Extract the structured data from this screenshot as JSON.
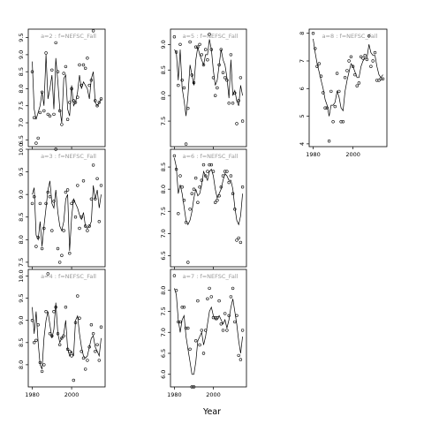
{
  "chart_data": {
    "type": "line",
    "layout": "3x3 grid of panels, column-major",
    "xlabel": "Year",
    "series_styles": {
      "observed": "open circles",
      "fitted": "black line"
    },
    "panels": [
      {
        "title": "a=2  :  f=NEFSC_Fall",
        "xlim": [
          1978,
          2017
        ],
        "ylim": [
          6.3,
          9.75
        ],
        "xticks": [
          1980,
          2000
        ],
        "yticks": [
          6.5,
          7.0,
          7.5,
          8.0,
          8.5,
          9.0,
          9.5
        ],
        "x": [
          1980,
          1981,
          1982,
          1983,
          1984,
          1985,
          1986,
          1987,
          1988,
          1989,
          1990,
          1991,
          1992,
          1993,
          1994,
          1995,
          1996,
          1997,
          1998,
          1999,
          2000,
          2001,
          2002,
          2003,
          2004,
          2005,
          2006,
          2007,
          2008,
          2009,
          2010,
          2011,
          2012,
          2013,
          2014,
          2015
        ],
        "observed": [
          8.5,
          7.15,
          6.4,
          6.55,
          7.3,
          7.9,
          7.35,
          9.05,
          7.25,
          7.2,
          8.55,
          7.25,
          9.35,
          8.5,
          7.35,
          6.95,
          8.45,
          8.65,
          7.1,
          7.6,
          8.0,
          7.65,
          7.6,
          7.75,
          8.7,
          8.1,
          8.7,
          8.6,
          8.9,
          8.1,
          8.25,
          9.7,
          7.65,
          7.5,
          7.6,
          7.7
        ],
        "fitted": [
          8.8,
          7.4,
          7.1,
          7.3,
          7.5,
          7.9,
          7.5,
          9.0,
          7.7,
          8.0,
          8.4,
          7.4,
          8.9,
          8.2,
          7.4,
          7.0,
          8.3,
          8.4,
          7.4,
          7.2,
          8.1,
          7.5,
          7.6,
          7.9,
          8.4,
          8.0,
          8.2,
          8.1,
          8.0,
          7.7,
          8.3,
          8.5,
          7.6,
          7.5,
          7.6,
          7.7
        ]
      },
      {
        "title": "a=3  :  f=NEFSC_Fall",
        "xlim": [
          1978,
          2017
        ],
        "ylim": [
          7.4,
          10.0
        ],
        "xticks": [
          1980,
          2000
        ],
        "yticks": [
          7.5,
          8.0,
          8.5,
          9.0,
          9.5,
          10.0
        ],
        "x": [
          1980,
          1981,
          1982,
          1983,
          1984,
          1985,
          1986,
          1987,
          1988,
          1989,
          1990,
          1991,
          1992,
          1993,
          1994,
          1995,
          1996,
          1997,
          1998,
          1999,
          2000,
          2001,
          2002,
          2003,
          2004,
          2005,
          2006,
          2007,
          2008,
          2009,
          2010,
          2011,
          2012,
          2013,
          2014,
          2015
        ],
        "observed": [
          8.8,
          8.95,
          7.85,
          8.05,
          8.8,
          7.8,
          8.25,
          8.8,
          9.05,
          8.95,
          8.2,
          8.85,
          10.0,
          7.8,
          7.5,
          7.65,
          8.2,
          9.05,
          9.1,
          7.7,
          8.8,
          8.85,
          8.5,
          9.2,
          8.25,
          8.5,
          9.3,
          8.3,
          8.2,
          8.3,
          8.9,
          9.65,
          8.9,
          9.35,
          8.4,
          9.2
        ],
        "fitted": [
          9.0,
          9.15,
          8.1,
          8.0,
          8.4,
          7.85,
          8.3,
          8.7,
          9.1,
          9.3,
          8.8,
          8.7,
          9.1,
          8.6,
          8.3,
          8.2,
          8.4,
          8.9,
          9.0,
          7.75,
          8.5,
          8.9,
          8.8,
          8.7,
          8.55,
          8.45,
          8.6,
          8.3,
          8.25,
          8.3,
          8.4,
          9.2,
          8.9,
          9.1,
          8.7,
          9.0
        ]
      },
      {
        "title": "a=4  :  f=NEFSC_Fall",
        "xlim": [
          1978,
          2017
        ],
        "ylim": [
          7.5,
          10.15
        ],
        "xticks": [
          1980,
          2000
        ],
        "yticks": [
          8.0,
          8.5,
          9.0,
          9.5,
          10.0
        ],
        "x": [
          1980,
          1981,
          1982,
          1983,
          1984,
          1985,
          1986,
          1987,
          1988,
          1989,
          1990,
          1991,
          1992,
          1993,
          1994,
          1995,
          1996,
          1997,
          1998,
          1999,
          2000,
          2001,
          2002,
          2003,
          2004,
          2005,
          2006,
          2007,
          2008,
          2009,
          2010,
          2011,
          2012,
          2013,
          2014,
          2015
        ],
        "observed": [
          9.0,
          8.5,
          8.55,
          8.9,
          8.05,
          7.85,
          8.0,
          9.2,
          10.05,
          8.7,
          8.65,
          9.2,
          9.3,
          8.7,
          8.45,
          8.6,
          8.65,
          9.3,
          8.35,
          8.3,
          8.2,
          7.65,
          8.95,
          9.55,
          9.05,
          8.3,
          8.15,
          7.9,
          8.1,
          8.4,
          8.9,
          8.7,
          8.3,
          8.45,
          8.1,
          8.85
        ],
        "fitted": [
          9.3,
          8.7,
          9.2,
          8.5,
          8.0,
          7.9,
          8.6,
          9.0,
          9.2,
          8.9,
          8.6,
          8.8,
          9.4,
          8.7,
          8.5,
          8.6,
          8.7,
          9.0,
          8.35,
          8.2,
          8.3,
          8.2,
          9.0,
          9.1,
          8.7,
          8.4,
          8.2,
          8.15,
          8.2,
          8.4,
          8.6,
          8.65,
          8.4,
          8.3,
          8.2,
          8.6
        ]
      },
      {
        "title": "a=5  :  f=NEFSC_Fall",
        "xlim": [
          1978,
          2017
        ],
        "ylim": [
          7.0,
          9.3
        ],
        "xticks": [
          1980,
          2000
        ],
        "yticks": [
          7.5,
          8.0,
          8.5,
          9.0
        ],
        "x": [
          1980,
          1981,
          1982,
          1983,
          1984,
          1985,
          1986,
          1987,
          1988,
          1989,
          1990,
          1991,
          1992,
          1993,
          1994,
          1995,
          1996,
          1997,
          1998,
          1999,
          2000,
          2001,
          2002,
          2003,
          2004,
          2005,
          2006,
          2007,
          2008,
          2009,
          2010,
          2011,
          2012,
          2013,
          2014,
          2015
        ],
        "observed": [
          9.15,
          8.85,
          8.2,
          9.0,
          8.3,
          8.15,
          7.05,
          7.75,
          9.05,
          8.4,
          8.25,
          8.95,
          8.95,
          9.0,
          8.8,
          8.6,
          8.9,
          8.7,
          9.2,
          8.9,
          8.35,
          8.0,
          8.15,
          8.6,
          8.9,
          8.45,
          8.35,
          8.3,
          7.85,
          8.8,
          7.85,
          8.05,
          7.45,
          7.9,
          8.35,
          7.5
        ],
        "fitted": [
          8.9,
          8.85,
          8.3,
          8.9,
          8.15,
          7.9,
          7.6,
          8.0,
          8.6,
          8.4,
          8.2,
          8.7,
          8.95,
          8.8,
          8.7,
          8.6,
          8.8,
          8.8,
          9.1,
          8.9,
          8.5,
          8.2,
          8.3,
          8.6,
          8.9,
          8.7,
          8.6,
          8.35,
          7.95,
          8.7,
          8.0,
          8.1,
          7.9,
          7.8,
          8.2,
          8.0
        ]
      },
      {
        "title": "a=6  :  f=NEFSC_Fall",
        "xlim": [
          1978,
          2017
        ],
        "ylim": [
          6.25,
          8.9
        ],
        "xticks": [
          1980,
          2000
        ],
        "yticks": [
          6.5,
          7.0,
          7.5,
          8.0,
          8.5
        ],
        "x": [
          1980,
          1981,
          1982,
          1983,
          1984,
          1985,
          1986,
          1987,
          1988,
          1989,
          1990,
          1991,
          1992,
          1993,
          1994,
          1995,
          1996,
          1997,
          1998,
          1999,
          2000,
          2001,
          2002,
          2003,
          2004,
          2005,
          2006,
          2007,
          2008,
          2009,
          2010,
          2011,
          2012,
          2013,
          2014,
          2015
        ],
        "observed": [
          8.75,
          8.45,
          7.45,
          8.3,
          8.05,
          7.75,
          7.25,
          6.35,
          7.55,
          7.9,
          8.0,
          8.25,
          7.7,
          8.05,
          8.2,
          8.55,
          8.3,
          8.4,
          8.55,
          8.55,
          8.4,
          7.7,
          7.75,
          7.85,
          8.05,
          8.3,
          8.4,
          8.4,
          8.15,
          8.3,
          7.9,
          7.55,
          6.85,
          6.9,
          6.8,
          8.05
        ],
        "fitted": [
          8.7,
          8.5,
          7.9,
          8.1,
          7.9,
          7.6,
          7.3,
          7.2,
          7.3,
          7.5,
          7.8,
          8.0,
          7.85,
          7.9,
          8.1,
          8.4,
          8.3,
          8.2,
          8.4,
          8.45,
          8.3,
          8.0,
          7.8,
          7.9,
          8.0,
          8.2,
          8.35,
          8.3,
          8.2,
          8.2,
          8.0,
          7.6,
          7.3,
          7.2,
          7.4,
          7.9
        ]
      },
      {
        "title": "a=7  :  f=NEFSC_Fall",
        "xlim": [
          1978,
          2017
        ],
        "ylim": [
          5.7,
          8.5
        ],
        "xticks": [
          1980,
          2000
        ],
        "yticks": [
          6.0,
          6.5,
          7.0,
          7.5,
          8.0
        ],
        "x": [
          1980,
          1981,
          1982,
          1983,
          1984,
          1985,
          1986,
          1987,
          1988,
          1989,
          1990,
          1991,
          1992,
          1993,
          1994,
          1995,
          1996,
          1997,
          1998,
          1999,
          2000,
          2001,
          2002,
          2003,
          2004,
          2005,
          2006,
          2007,
          2008,
          2009,
          2010,
          2011,
          2012,
          2013,
          2014,
          2015
        ],
        "observed": [
          8.35,
          8.0,
          7.25,
          7.25,
          7.6,
          7.6,
          7.1,
          7.1,
          6.6,
          5.7,
          5.7,
          6.8,
          7.75,
          6.7,
          7.05,
          6.5,
          7.05,
          7.8,
          8.05,
          7.85,
          7.35,
          7.35,
          7.35,
          7.75,
          7.2,
          7.05,
          7.45,
          7.05,
          7.4,
          7.85,
          8.05,
          7.25,
          7.4,
          6.45,
          6.35,
          7.05
        ],
        "fitted": [
          8.05,
          7.9,
          7.3,
          7.0,
          7.3,
          7.4,
          6.9,
          6.6,
          6.3,
          6.0,
          6.0,
          6.3,
          6.8,
          6.9,
          7.0,
          6.7,
          6.9,
          7.2,
          7.5,
          7.6,
          7.4,
          7.3,
          7.3,
          7.4,
          7.3,
          7.2,
          7.3,
          7.1,
          7.3,
          7.6,
          7.8,
          7.5,
          7.2,
          6.8,
          6.5,
          6.9
        ]
      },
      {
        "title": "a=8  :  f=NEFSC_Fall",
        "xlim": [
          1978,
          2017
        ],
        "ylim": [
          3.9,
          8.15
        ],
        "xticks": [
          1980,
          2000
        ],
        "yticks": [
          4,
          5,
          6,
          7,
          8
        ],
        "x": [
          1980,
          1981,
          1982,
          1983,
          1984,
          1985,
          1986,
          1987,
          1988,
          1989,
          1990,
          1991,
          1992,
          1993,
          1994,
          1995,
          1996,
          1997,
          1998,
          1999,
          2000,
          2001,
          2002,
          2003,
          2004,
          2005,
          2006,
          2007,
          2008,
          2009,
          2010,
          2011,
          2012,
          2013,
          2014,
          2015
        ],
        "observed": [
          8.0,
          7.45,
          6.8,
          6.9,
          6.45,
          5.85,
          5.3,
          5.3,
          4.1,
          5.9,
          4.8,
          5.35,
          6.55,
          5.9,
          4.8,
          4.8,
          6.4,
          6.65,
          7.0,
          7.15,
          6.8,
          6.5,
          6.1,
          6.2,
          7.15,
          7.1,
          7.2,
          7.05,
          7.9,
          6.8,
          7.0,
          7.3,
          6.3,
          6.3,
          6.35,
          6.35
        ],
        "fitted": [
          7.8,
          7.3,
          6.9,
          6.6,
          6.3,
          6.0,
          5.6,
          5.4,
          5.0,
          5.4,
          5.4,
          5.5,
          5.9,
          5.7,
          5.3,
          5.2,
          5.9,
          6.3,
          6.6,
          6.9,
          6.8,
          6.6,
          6.4,
          6.4,
          6.8,
          7.0,
          7.1,
          7.1,
          7.6,
          7.3,
          7.2,
          7.2,
          6.8,
          6.5,
          6.4,
          6.5
        ]
      }
    ]
  }
}
